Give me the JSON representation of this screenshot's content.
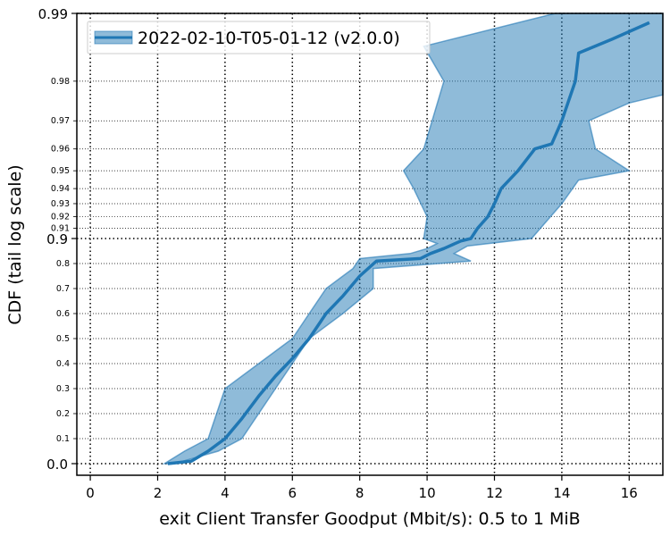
{
  "chart_data": {
    "type": "line",
    "xlabel": "exit Client Transfer Goodput (Mbit/s): 0.5 to 1 MiB",
    "ylabel": "CDF (tail log scale)",
    "xlim": [
      -0.4,
      17.0
    ],
    "x_ticks": [
      0,
      2,
      4,
      6,
      8,
      10,
      12,
      14,
      16
    ],
    "y_scale": "tail log (linear 0 to 0.9, log-tail above 0.9)",
    "y_major_ticks": [
      0.0,
      0.9,
      0.99
    ],
    "y_minor_ticks": [
      0.1,
      0.2,
      0.3,
      0.4,
      0.5,
      0.6,
      0.7,
      0.8,
      0.91,
      0.92,
      0.93,
      0.94,
      0.95,
      0.96,
      0.97,
      0.98
    ],
    "grid": true,
    "legend_position": "top-left",
    "series": [
      {
        "name": "2022-02-10-T05-01-12 (v2.0.0)",
        "color": "#1f77b4",
        "median": [
          [
            2.3,
            0.0
          ],
          [
            3.0,
            0.01
          ],
          [
            3.5,
            0.05
          ],
          [
            4.0,
            0.1
          ],
          [
            4.5,
            0.18
          ],
          [
            5.0,
            0.27
          ],
          [
            5.5,
            0.35
          ],
          [
            6.0,
            0.42
          ],
          [
            6.5,
            0.5
          ],
          [
            7.0,
            0.6
          ],
          [
            7.5,
            0.67
          ],
          [
            8.0,
            0.75
          ],
          [
            8.5,
            0.81
          ],
          [
            9.8,
            0.82
          ],
          [
            10.1,
            0.84
          ],
          [
            10.5,
            0.86
          ],
          [
            11.0,
            0.89
          ],
          [
            11.3,
            0.9
          ],
          [
            11.5,
            0.91
          ],
          [
            11.8,
            0.92
          ],
          [
            12.0,
            0.93
          ],
          [
            12.2,
            0.94
          ],
          [
            12.7,
            0.95
          ],
          [
            13.2,
            0.96
          ],
          [
            13.7,
            0.962
          ],
          [
            14.0,
            0.97
          ],
          [
            14.4,
            0.98
          ],
          [
            14.5,
            0.985
          ],
          [
            15.5,
            0.987
          ],
          [
            16.6,
            0.989
          ]
        ],
        "lower": [
          [
            2.2,
            0.0
          ],
          [
            2.8,
            0.05
          ],
          [
            3.5,
            0.1
          ],
          [
            4.0,
            0.3
          ],
          [
            5.0,
            0.4
          ],
          [
            6.0,
            0.5
          ],
          [
            6.5,
            0.6
          ],
          [
            7.0,
            0.7
          ],
          [
            7.8,
            0.78
          ],
          [
            8.0,
            0.82
          ],
          [
            9.5,
            0.84
          ],
          [
            10.0,
            0.86
          ],
          [
            10.3,
            0.88
          ],
          [
            9.9,
            0.9
          ],
          [
            10.0,
            0.92
          ],
          [
            9.6,
            0.94
          ],
          [
            9.3,
            0.95
          ],
          [
            9.9,
            0.96
          ],
          [
            10.5,
            0.98
          ],
          [
            9.9,
            0.986
          ],
          [
            13.8,
            0.99
          ]
        ],
        "upper": [
          [
            2.5,
            0.0
          ],
          [
            3.8,
            0.05
          ],
          [
            4.5,
            0.1
          ],
          [
            5.5,
            0.3
          ],
          [
            6.5,
            0.5
          ],
          [
            7.5,
            0.6
          ],
          [
            8.4,
            0.7
          ],
          [
            8.4,
            0.78
          ],
          [
            11.3,
            0.81
          ],
          [
            10.8,
            0.84
          ],
          [
            11.2,
            0.87
          ],
          [
            13.1,
            0.9
          ],
          [
            14.0,
            0.93
          ],
          [
            14.5,
            0.945
          ],
          [
            16.0,
            0.95
          ],
          [
            15.0,
            0.96
          ],
          [
            14.8,
            0.97
          ],
          [
            16.0,
            0.975
          ],
          [
            17.0,
            0.977
          ],
          [
            17.0,
            0.99
          ]
        ]
      }
    ]
  }
}
